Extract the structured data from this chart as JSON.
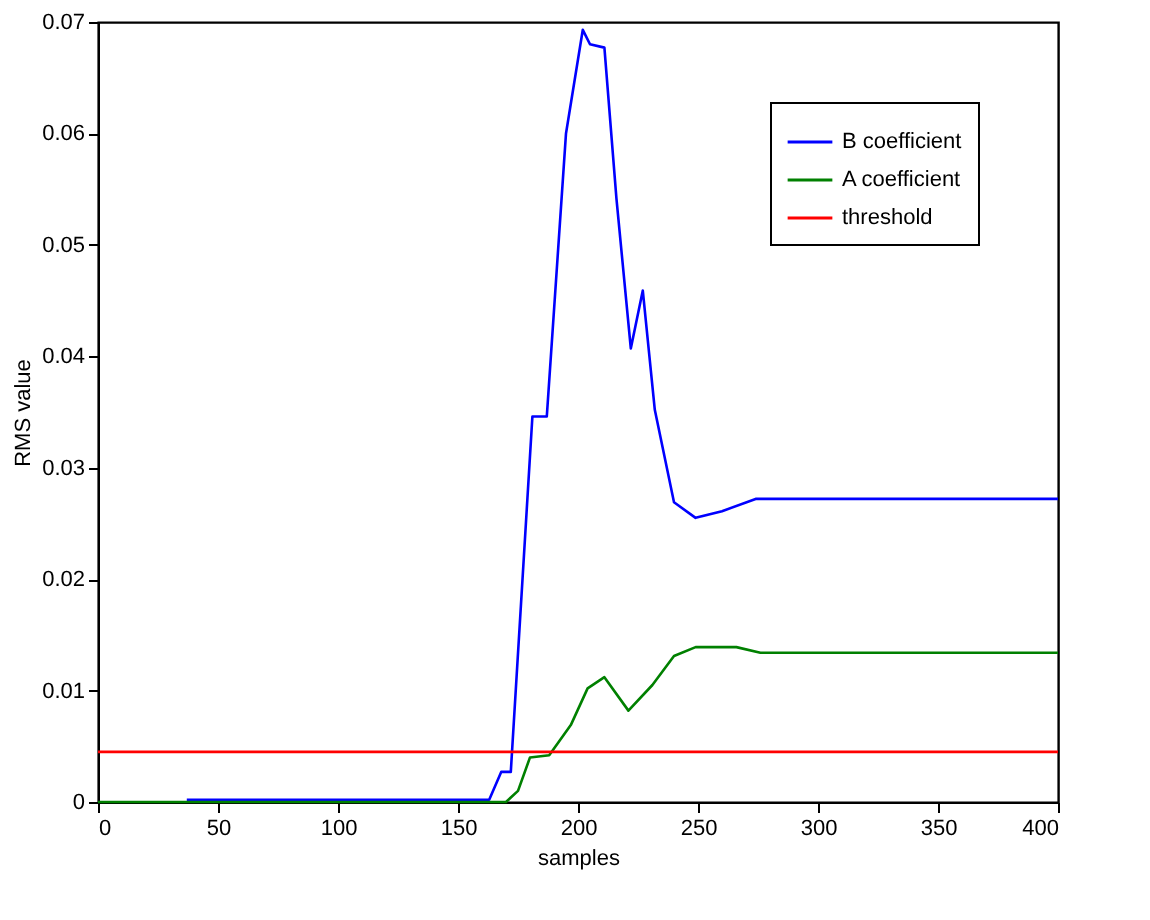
{
  "chart_data": {
    "type": "line",
    "xlabel": "samples",
    "ylabel": "RMS value",
    "xlim": [
      0,
      400
    ],
    "xticks": [
      0,
      50,
      100,
      150,
      200,
      250,
      300,
      350,
      400
    ],
    "ylim": [
      0,
      0.07
    ],
    "yticks": [
      0,
      0.01,
      0.02,
      0.03,
      0.04,
      0.05,
      0.06,
      0.07
    ],
    "grid": false,
    "legend": "top right",
    "marker": "none",
    "line_style": "solid",
    "series": [
      {
        "name": "B coefficient",
        "color": "#0000ff",
        "x": [
          37,
          100,
          163,
          168,
          172,
          181,
          187,
          195,
          202,
          205,
          211,
          216,
          222,
          227,
          232,
          240,
          249,
          260,
          274,
          300,
          400
        ],
        "values": [
          0.0002,
          0.0002,
          0.0002,
          0.0027,
          0.0027,
          0.0346,
          0.0346,
          0.06,
          0.0693,
          0.068,
          0.0677,
          0.0542,
          0.0407,
          0.0459,
          0.0352,
          0.0269,
          0.0255,
          0.0261,
          0.0272,
          0.0272,
          0.0272
        ]
      },
      {
        "name": "A coefficient",
        "color": "#008000",
        "x": [
          0,
          100,
          170,
          175,
          180,
          188,
          197,
          204,
          211,
          221,
          231,
          240,
          249,
          266,
          276,
          300,
          400
        ],
        "values": [
          0,
          0,
          0,
          0.001,
          0.004,
          0.0042,
          0.0069,
          0.0102,
          0.0112,
          0.0082,
          0.0105,
          0.0131,
          0.0139,
          0.0139,
          0.0134,
          0.0134,
          0.0134
        ]
      },
      {
        "name": "threshold",
        "color": "#ff0000",
        "x": [
          0,
          400
        ],
        "values": [
          0.0045,
          0.0045
        ]
      }
    ]
  }
}
